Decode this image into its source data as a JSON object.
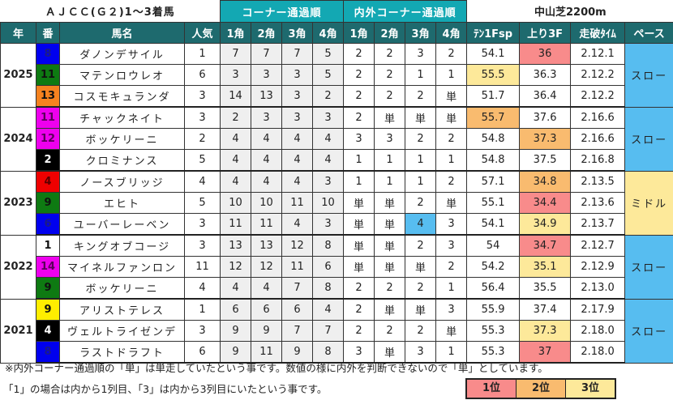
{
  "title": {
    "main": "ＡＪＣＣ(Ｇ２)1～3着馬",
    "corner_group": "コーナー通過順",
    "inout_group": "内外コーナー通過順",
    "course": "中山芝2200m"
  },
  "headers": {
    "year": "年",
    "number": "番",
    "horse": "馬名",
    "popularity": "人気",
    "c1": "1角",
    "c2": "2角",
    "c3": "3角",
    "c4": "4角",
    "io1": "1角",
    "io2": "2角",
    "io3": "3角",
    "io4": "4角",
    "ten1f": "ﾃﾝ1Fsp",
    "agari": "上り3F",
    "time": "走破ﾀｲﾑ",
    "pace": "ペース"
  },
  "colors": {
    "rank1": "#f88b8b",
    "rank2": "#f9bb6f",
    "rank3": "#fde99a",
    "pace_slow": "#57bdf0",
    "pace_middle": "#fde99a",
    "header": "#1e6a6e",
    "group_header": "#13a8b3",
    "inout_highlight": "#57bdf0"
  },
  "groups": [
    {
      "year": "2025",
      "pace": "スロー",
      "rows": [
        {
          "num": "8",
          "name": "ダノンデサイル",
          "pop": "1",
          "c": [
            "7",
            "7",
            "7",
            "5"
          ],
          "io": [
            "2",
            "2",
            "3",
            "2"
          ],
          "ten1f": "54.1",
          "agari": "36",
          "time": "2.12.1"
        },
        {
          "num": "11",
          "name": "マテンロウレオ",
          "pop": "6",
          "c": [
            "3",
            "3",
            "3",
            "5"
          ],
          "io": [
            "2",
            "2",
            "1",
            "1"
          ],
          "ten1f": "55.5",
          "agari": "36.3",
          "time": "2.12.2"
        },
        {
          "num": "13",
          "name": "コスモキュランダ",
          "pop": "3",
          "c": [
            "14",
            "13",
            "3",
            "2"
          ],
          "io": [
            "2",
            "2",
            "2",
            "単"
          ],
          "ten1f": "51.7",
          "agari": "36.4",
          "time": "2.12.2"
        }
      ]
    },
    {
      "year": "2024",
      "pace": "スロー",
      "rows": [
        {
          "num": "11",
          "name": "チャックネイト",
          "pop": "3",
          "c": [
            "2",
            "3",
            "3",
            "3"
          ],
          "io": [
            "2",
            "単",
            "単",
            "単"
          ],
          "ten1f": "55.7",
          "agari": "37.6",
          "time": "2.16.6"
        },
        {
          "num": "12",
          "name": "ボッケリーニ",
          "pop": "2",
          "c": [
            "4",
            "4",
            "4",
            "4"
          ],
          "io": [
            "3",
            "3",
            "2",
            "2"
          ],
          "ten1f": "54.8",
          "agari": "37.3",
          "time": "2.16.6"
        },
        {
          "num": "2",
          "name": "クロミナンス",
          "pop": "5",
          "c": [
            "4",
            "4",
            "4",
            "4"
          ],
          "io": [
            "1",
            "1",
            "1",
            "1"
          ],
          "ten1f": "54.8",
          "agari": "37.5",
          "time": "2.16.8"
        }
      ]
    },
    {
      "year": "2023",
      "pace": "ミドル",
      "rows": [
        {
          "num": "4",
          "name": "ノースブリッジ",
          "pop": "4",
          "c": [
            "4",
            "4",
            "4",
            "3"
          ],
          "io": [
            "1",
            "1",
            "1",
            "2"
          ],
          "ten1f": "57.1",
          "agari": "34.8",
          "time": "2.13.5"
        },
        {
          "num": "9",
          "name": "エヒト",
          "pop": "5",
          "c": [
            "10",
            "10",
            "11",
            "10"
          ],
          "io": [
            "単",
            "単",
            "2",
            "単"
          ],
          "ten1f": "55.1",
          "agari": "34.4",
          "time": "2.13.6"
        },
        {
          "num": "6",
          "name": "ユーバーレーベン",
          "pop": "3",
          "c": [
            "11",
            "11",
            "4",
            "3"
          ],
          "io": [
            "単",
            "単",
            "4",
            "3"
          ],
          "ten1f": "54.1",
          "agari": "34.9",
          "time": "2.13.7"
        }
      ]
    },
    {
      "year": "2022",
      "pace": "スロー",
      "rows": [
        {
          "num": "1",
          "name": "キングオブコージ",
          "pop": "3",
          "c": [
            "13",
            "13",
            "12",
            "8"
          ],
          "io": [
            "単",
            "単",
            "2",
            "3"
          ],
          "ten1f": "54",
          "agari": "34.7",
          "time": "2.12.7"
        },
        {
          "num": "14",
          "name": "マイネルファンロン",
          "pop": "11",
          "c": [
            "12",
            "12",
            "11",
            "6"
          ],
          "io": [
            "単",
            "単",
            "単",
            "2"
          ],
          "ten1f": "54.2",
          "agari": "35.1",
          "time": "2.12.9"
        },
        {
          "num": "9",
          "name": "ボッケリーニ",
          "pop": "4",
          "c": [
            "4",
            "4",
            "7",
            "8"
          ],
          "io": [
            "2",
            "2",
            "2",
            "1"
          ],
          "ten1f": "56.4",
          "agari": "35.5",
          "time": "2.13.0"
        }
      ]
    },
    {
      "year": "2021",
      "pace": "スロー",
      "rows": [
        {
          "num": "9",
          "name": "アリストテレス",
          "pop": "1",
          "c": [
            "6",
            "6",
            "6",
            "4"
          ],
          "io": [
            "2",
            "単",
            "単",
            "3"
          ],
          "ten1f": "55.9",
          "agari": "37.4",
          "time": "2.17.9"
        },
        {
          "num": "4",
          "name": "ヴェルトライゼンデ",
          "pop": "3",
          "c": [
            "9",
            "9",
            "7",
            "7"
          ],
          "io": [
            "2",
            "2",
            "2",
            "単"
          ],
          "ten1f": "55.3",
          "agari": "37.3",
          "time": "2.18.0"
        },
        {
          "num": "8",
          "name": "ラストドラフト",
          "pop": "6",
          "c": [
            "9",
            "11",
            "9",
            "8"
          ],
          "io": [
            "3",
            "単",
            "3",
            "1"
          ],
          "ten1f": "55.3",
          "agari": "37",
          "time": "2.18.0"
        }
      ]
    }
  ],
  "notes": {
    "line1": "※内外コーナー通過順の「単」は単走していたという事です。数値の様に内外を判断できないので「単」としています。",
    "line2": "「1」の場合は内から1列目、「3」は内から3列目にいたという事です。"
  },
  "legend": {
    "rank1": "1位",
    "rank2": "2位",
    "rank3": "3位"
  }
}
